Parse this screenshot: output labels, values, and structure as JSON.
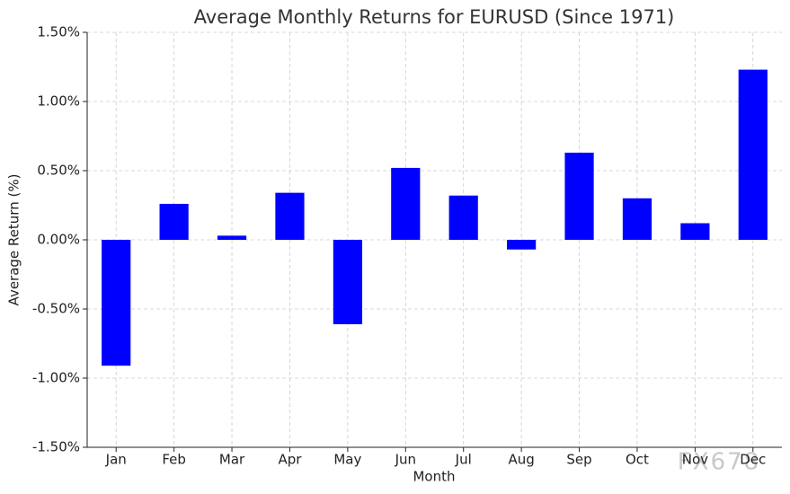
{
  "chart_data": {
    "type": "bar",
    "title": "Average Monthly Returns for EURUSD (Since 1971)",
    "x_label": "Month",
    "y_label": "Average Return (%)",
    "categories": [
      "Jan",
      "Feb",
      "Mar",
      "Apr",
      "May",
      "Jun",
      "Jul",
      "Aug",
      "Sep",
      "Oct",
      "Nov",
      "Dec"
    ],
    "values": [
      -0.91,
      0.26,
      0.03,
      0.34,
      -0.61,
      0.52,
      0.32,
      -0.07,
      0.63,
      0.3,
      0.12,
      1.23
    ],
    "color": "#0000ff",
    "ylim": [
      -1.5,
      1.5
    ],
    "yticks": [
      {
        "value": -1.5,
        "label": "-1.50%"
      },
      {
        "value": -1.0,
        "label": "-1.00%"
      },
      {
        "value": -0.5,
        "label": "-0.50%"
      },
      {
        "value": 0,
        "label": "0.00%"
      },
      {
        "value": 0.5,
        "label": "0.50%"
      },
      {
        "value": 1.0,
        "label": "1.00%"
      },
      {
        "value": 1.5,
        "label": "1.50%"
      }
    ],
    "grid": true,
    "watermark": "FX678"
  }
}
